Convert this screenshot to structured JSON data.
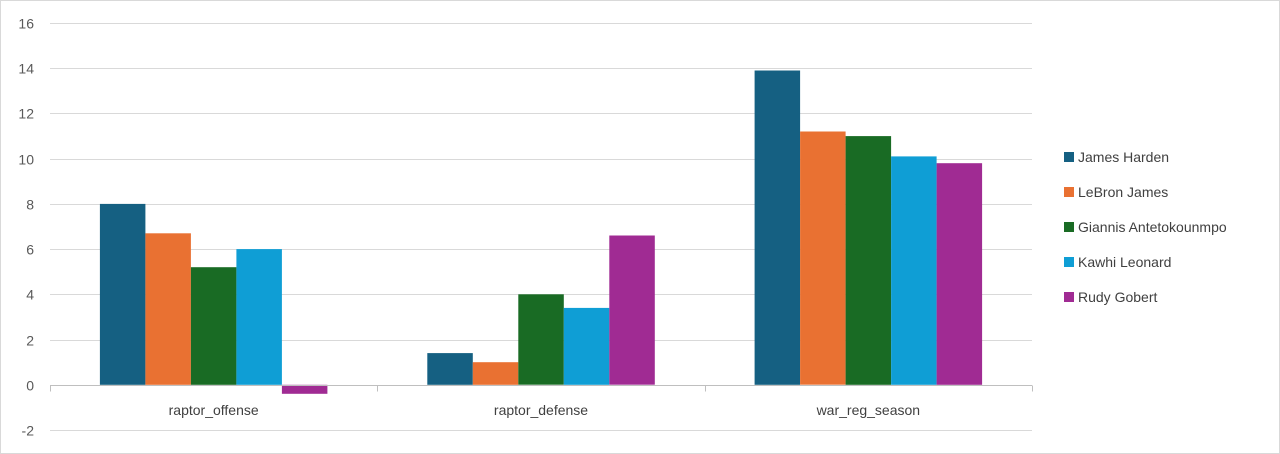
{
  "chart_data": {
    "type": "bar",
    "title": "",
    "xlabel": "",
    "ylabel": "",
    "categories": [
      "raptor_offense",
      "raptor_defense",
      "war_reg_season"
    ],
    "ylim": [
      -2,
      16
    ],
    "yticks": [
      -2,
      0,
      2,
      4,
      6,
      8,
      10,
      12,
      14,
      16
    ],
    "grid": true,
    "legend_position": "right",
    "series": [
      {
        "name": "James Harden",
        "color": "#156082",
        "values": [
          8.0,
          1.4,
          13.9
        ]
      },
      {
        "name": "LeBron James",
        "color": "#E97132",
        "values": [
          6.7,
          1.0,
          11.2
        ]
      },
      {
        "name": "Giannis Antetokounmpo",
        "color": "#196B24",
        "values": [
          5.2,
          4.0,
          11.0
        ]
      },
      {
        "name": "Kawhi Leonard",
        "color": "#0F9ED5",
        "values": [
          6.0,
          3.4,
          10.1
        ]
      },
      {
        "name": "Rudy Gobert",
        "color": "#A02B93",
        "values": [
          -0.4,
          6.6,
          9.8
        ]
      }
    ]
  }
}
